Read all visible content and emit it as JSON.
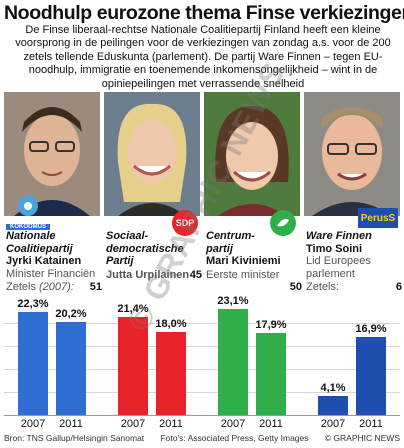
{
  "title": "Noodhulp eurozone thema Finse verkiezingen",
  "intro": "De Finse liberaal-rechtse Nationale Coalitiepartij Finland heeft een kleine voorsprong in de peilingen voor de verkiezingen van zondag a.s. voor de 200 zetels tellende Eduskunta (parlement). De partij Ware Finnen – tegen EU-noodhulp, immigratie en toenemende inkomensongelijkheid – wint in de opiniepeilingen met verrassende snelheid",
  "parties": [
    {
      "party": "Nationale Coalitiepartij",
      "leader": "Jyrki Katainen",
      "role": "Minister Financiën",
      "seats_label": "Zetels",
      "seats_year": "(2007):",
      "seats": "51",
      "logo_text": "KOKOOMUS",
      "v2007": "22,3%",
      "v2011": "20,2%",
      "color": "#2f6fd3"
    },
    {
      "party": "Sociaal-democratische Partij",
      "party_line1": "Sociaal-",
      "party_line2": "democratische",
      "party_line3": "Partij",
      "leader": "Jutta Urpilainen",
      "role": "",
      "seats_label": "",
      "seats": "45",
      "logo_text": "SDP",
      "v2007": "21,4%",
      "v2011": "18,0%",
      "color": "#e8242a"
    },
    {
      "party": "Centrumpartij",
      "party_line1": "Centrum-",
      "party_line2": "partij",
      "leader": "Mari Kiviniemi",
      "role": "Eerste minister",
      "seats": "50",
      "v2007": "23,1%",
      "v2011": "17,9%",
      "color": "#2fae4a"
    },
    {
      "party": "Ware Finnen",
      "leader": "Timo Soini",
      "role_line1": "Lid Europees",
      "role_line2": "parlement",
      "seats_label": "Zetels:",
      "seats": "6",
      "logo_text": "PerusS",
      "v2007": "4,1%",
      "v2011": "16,9%",
      "color": "#1e4fb0"
    }
  ],
  "years": [
    "2007",
    "2011"
  ],
  "watermark": "© GRAPHIC NEWS",
  "source": "Bron: TNS Gallup/Helsingin Sanomat",
  "photos": "Foto's: Associated Press, Getty Images",
  "credit": "© GRAPHIC NEWS",
  "chart_data": {
    "type": "bar",
    "categories": [
      "Nationale Coalitiepartij",
      "Sociaal-democratische Partij",
      "Centrumpartij",
      "Ware Finnen"
    ],
    "series": [
      {
        "name": "2007",
        "values": [
          22.3,
          21.4,
          23.1,
          4.1
        ]
      },
      {
        "name": "2011",
        "values": [
          20.2,
          18.0,
          17.9,
          16.9
        ]
      }
    ],
    "ylim": [
      0,
      25
    ],
    "grid": true
  }
}
